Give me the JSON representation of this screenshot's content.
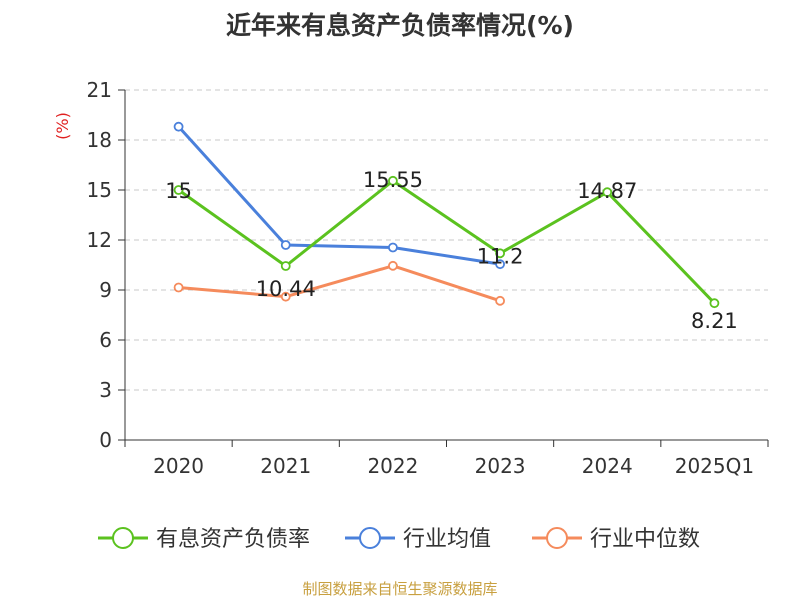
{
  "chart_data": {
    "type": "line",
    "title": "近年来有息资产负债率情况(%)",
    "ylabel": "(%)",
    "categories": [
      "2020",
      "2021",
      "2022",
      "2023",
      "2024",
      "2025Q1"
    ],
    "yticks": [
      "0",
      "3",
      "6",
      "9",
      "12",
      "15",
      "18",
      "21"
    ],
    "ylim": [
      0,
      21
    ],
    "grid": true,
    "legend": "bottom",
    "series": [
      {
        "name": "有息资产负债率",
        "color": "#5bc21f",
        "values": [
          15,
          10.44,
          15.55,
          11.2,
          14.87,
          8.21
        ],
        "labels": [
          "15",
          "10.44",
          "15.55",
          "11.2",
          "14.87",
          "8.21"
        ]
      },
      {
        "name": "行业均值",
        "color": "#4a80db",
        "values": [
          18.8,
          11.7,
          11.55,
          10.55,
          null,
          null
        ]
      },
      {
        "name": "行业中位数",
        "color": "#f58b5c",
        "values": [
          9.15,
          8.6,
          10.45,
          8.35,
          null,
          null
        ]
      }
    ],
    "source": "制图数据来自恒生聚源数据库"
  }
}
